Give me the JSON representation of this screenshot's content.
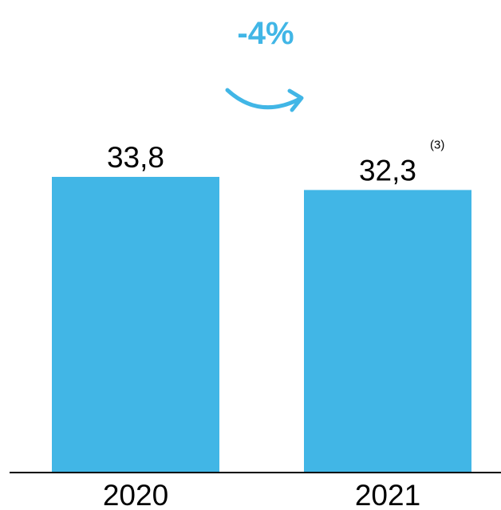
{
  "chart_data": {
    "type": "bar",
    "categories": [
      "2020",
      "2021"
    ],
    "values": [
      33.8,
      32.3
    ],
    "value_labels": [
      "33,8",
      "32,3"
    ],
    "footnotes": [
      "",
      "(3)"
    ],
    "change_annotation": "-4%",
    "ylim": [
      0,
      35.8
    ],
    "title": "",
    "xlabel": "",
    "ylabel": "",
    "grid": false,
    "legend": "none",
    "bar_color": "#41b6e6",
    "accent_color": "#41b6e6",
    "axis_color": "#000000"
  }
}
